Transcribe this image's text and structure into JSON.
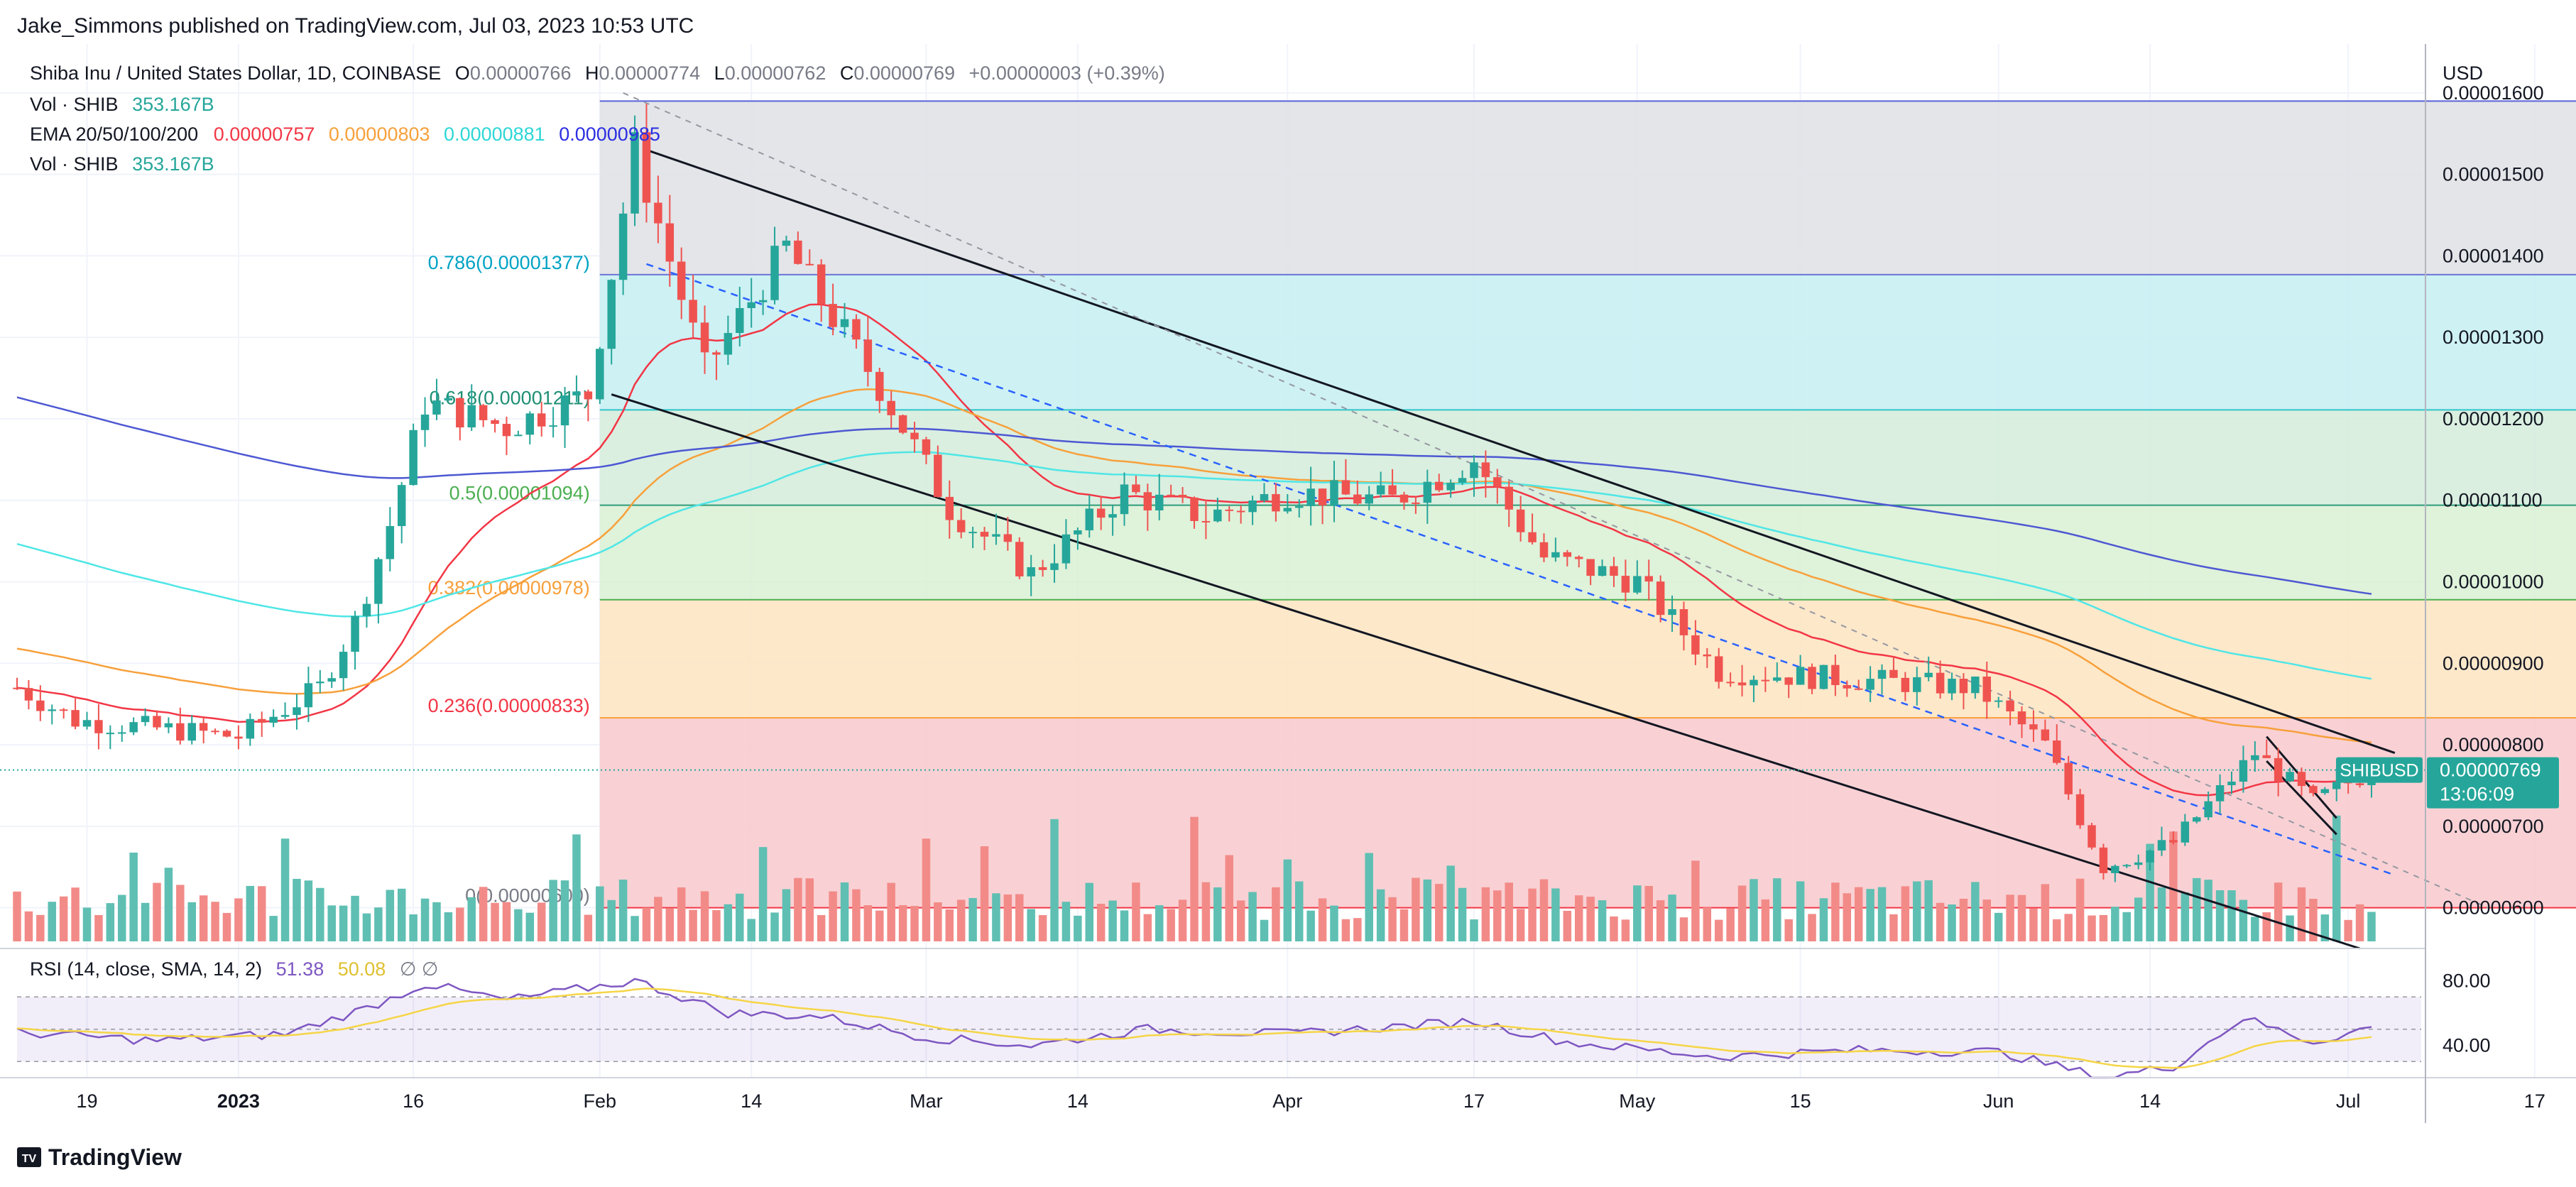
{
  "header": {
    "publisher": "Jake_Simmons published on TradingView.com, Jul 03, 2023 10:53 UTC"
  },
  "legend": {
    "symbol": "Shiba Inu / United States Dollar, 1D, COINBASE",
    "o_label": "O",
    "o_value": "0.00000766",
    "h_label": "H",
    "h_value": "0.00000774",
    "l_label": "L",
    "l_value": "0.00000762",
    "c_label": "C",
    "c_value": "0.00000769",
    "change": "+0.00000003 (+0.39%)",
    "vol_label": "Vol · SHIB",
    "vol_value": "353.167B",
    "ema_label": "EMA 20/50/100/200",
    "ema20": "0.00000757",
    "ema50": "0.00000803",
    "ema100": "0.00000881",
    "ema200": "0.00000985",
    "vol2_label": "Vol · SHIB",
    "vol2_value": "353.167B",
    "rsi_label": "RSI (14, close, SMA, 14, 2)",
    "rsi_value": "51.38",
    "rsi_sma": "50.08",
    "rsi_extra": "∅ ∅"
  },
  "price_axis": {
    "unit": "USD",
    "ticks": [
      "0.00001600",
      "0.00001500",
      "0.00001400",
      "0.00001300",
      "0.00001200",
      "0.00001100",
      "0.00001000",
      "0.00000900",
      "0.00000800",
      "0.00000700",
      "0.00000600"
    ],
    "current_symbol": "SHIBUSD",
    "current_price": "0.00000769",
    "countdown": "13:06:09"
  },
  "rsi_axis": {
    "ticks": [
      "80.00",
      "40.00"
    ]
  },
  "time_axis": {
    "labels": [
      "19",
      "2023",
      "16",
      "Feb",
      "14",
      "Mar",
      "14",
      "Apr",
      "17",
      "May",
      "15",
      "Jun",
      "14",
      "Jul",
      "17"
    ]
  },
  "footer": {
    "brand": "TradingView",
    "logo_mark": "TV"
  },
  "colors": {
    "up": "#26a69a",
    "down": "#ef5350",
    "ema20": "#f23645",
    "ema50": "#f7a03b",
    "ema100": "#4fe6e6",
    "ema200": "#4d58d2",
    "rsi": "#7e57c2",
    "rsi_sma": "#f5d547",
    "fib_0": "#f8c9cc",
    "fib_0236": "#fde4c1",
    "fib_0382": "#d9f0d3",
    "fib_05": "#d4ecdb",
    "fib_0618": "#c6eef2",
    "fib_0786": "#dee0e4"
  },
  "chart_data": {
    "type": "candlestick",
    "title": "Shiba Inu / United States Dollar, 1D, COINBASE",
    "ylabel": "USD",
    "ylim": [
      5.5e-06,
      1.66e-05
    ],
    "date_range": [
      "2022-12-13",
      "2023-07-03"
    ],
    "grid": true,
    "series": [
      {
        "name": "EMA 20",
        "last": 7.57e-06
      },
      {
        "name": "EMA 50",
        "last": 8.03e-06
      },
      {
        "name": "EMA 100",
        "last": 8.81e-06
      },
      {
        "name": "EMA 200",
        "last": 9.85e-06
      }
    ],
    "close_anchors": [
      [
        "2022-12-13",
        8.7e-06
      ],
      [
        "2022-12-18",
        8.3e-06
      ],
      [
        "2022-12-25",
        8.2e-06
      ],
      [
        "2023-01-01",
        8.1e-06
      ],
      [
        "2023-01-08",
        8.7e-06
      ],
      [
        "2023-01-11",
        9.5e-06
      ],
      [
        "2023-01-14",
        1.07e-05
      ],
      [
        "2023-01-17",
        1.22e-05
      ],
      [
        "2023-01-24",
        1.19e-05
      ],
      [
        "2023-01-31",
        1.23e-05
      ],
      [
        "2023-02-04",
        1.53e-05
      ],
      [
        "2023-02-10",
        1.26e-05
      ],
      [
        "2023-02-17",
        1.41e-05
      ],
      [
        "2023-02-25",
        1.24e-05
      ],
      [
        "2023-03-03",
        1.09e-05
      ],
      [
        "2023-03-10",
        1.01e-05
      ],
      [
        "2023-03-18",
        1.11e-05
      ],
      [
        "2023-03-25",
        1.08e-05
      ],
      [
        "2023-04-01",
        1.11e-05
      ],
      [
        "2023-04-10",
        1.1e-05
      ],
      [
        "2023-04-17",
        1.15e-05
      ],
      [
        "2023-04-23",
        1.03e-05
      ],
      [
        "2023-05-01",
        1e-05
      ],
      [
        "2023-05-08",
        8.9e-06
      ],
      [
        "2023-05-20",
        8.8e-06
      ],
      [
        "2023-05-30",
        8.7e-06
      ],
      [
        "2023-06-05",
        8e-06
      ],
      [
        "2023-06-10",
        6.5e-06
      ],
      [
        "2023-06-16",
        6.8e-06
      ],
      [
        "2023-06-23",
        7.9e-06
      ],
      [
        "2023-06-28",
        7.3e-06
      ],
      [
        "2023-07-03",
        7.69e-06
      ]
    ],
    "fibonacci": [
      {
        "label": "0.786(0.00001377)",
        "value": 1.377e-05
      },
      {
        "label": "0.618(0.00001211)",
        "value": 1.211e-05
      },
      {
        "label": "0.5(0.00001094)",
        "value": 1.094e-05
      },
      {
        "label": "0.382(0.00000978)",
        "value": 9.78e-06
      },
      {
        "label": "0.236(0.00000833)",
        "value": 8.33e-06
      },
      {
        "label": "0(0.00000600)",
        "value": 6e-06
      }
    ],
    "fib_top": 1.59e-05,
    "fib_range_dates": [
      "2023-02-01",
      "2023-07-25"
    ],
    "channel": {
      "upper": [
        [
          "2023-02-05",
          1.53e-05
        ],
        [
          "2023-07-05",
          7.9e-06
        ]
      ],
      "lower": [
        [
          "2023-02-02",
          1.23e-05
        ],
        [
          "2023-07-02",
          5.5e-06
        ]
      ],
      "mid_dashed": [
        [
          "2023-02-05",
          1.39e-05
        ],
        [
          "2023-07-05",
          6.4e-06
        ]
      ],
      "upper_dashed": [
        [
          "2023-02-03",
          1.6e-05
        ],
        [
          "2023-07-13",
          6e-06
        ]
      ]
    },
    "wedge": [
      [
        [
          "2023-06-24",
          8.1e-06
        ],
        [
          "2023-06-30",
          7.1e-06
        ]
      ],
      [
        [
          "2023-06-24",
          7.8e-06
        ],
        [
          "2023-06-30",
          6.9e-06
        ]
      ]
    ],
    "rsi": {
      "ylim": [
        20,
        100
      ],
      "band": [
        70,
        30
      ],
      "anchors": [
        [
          "2022-12-13",
          48
        ],
        [
          "2022-12-25",
          43
        ],
        [
          "2023-01-05",
          47
        ],
        [
          "2023-01-12",
          63
        ],
        [
          "2023-01-17",
          78
        ],
        [
          "2023-01-24",
          68
        ],
        [
          "2023-02-04",
          80
        ],
        [
          "2023-02-12",
          60
        ],
        [
          "2023-02-20",
          58
        ],
        [
          "2023-03-01",
          45
        ],
        [
          "2023-03-10",
          40
        ],
        [
          "2023-03-20",
          50
        ],
        [
          "2023-04-01",
          47
        ],
        [
          "2023-04-17",
          55
        ],
        [
          "2023-04-25",
          42
        ],
        [
          "2023-05-08",
          33
        ],
        [
          "2023-05-20",
          37
        ],
        [
          "2023-06-01",
          36
        ],
        [
          "2023-06-10",
          20
        ],
        [
          "2023-06-16",
          27
        ],
        [
          "2023-06-22",
          57
        ],
        [
          "2023-06-28",
          42
        ],
        [
          "2023-07-03",
          51.38
        ]
      ]
    }
  }
}
